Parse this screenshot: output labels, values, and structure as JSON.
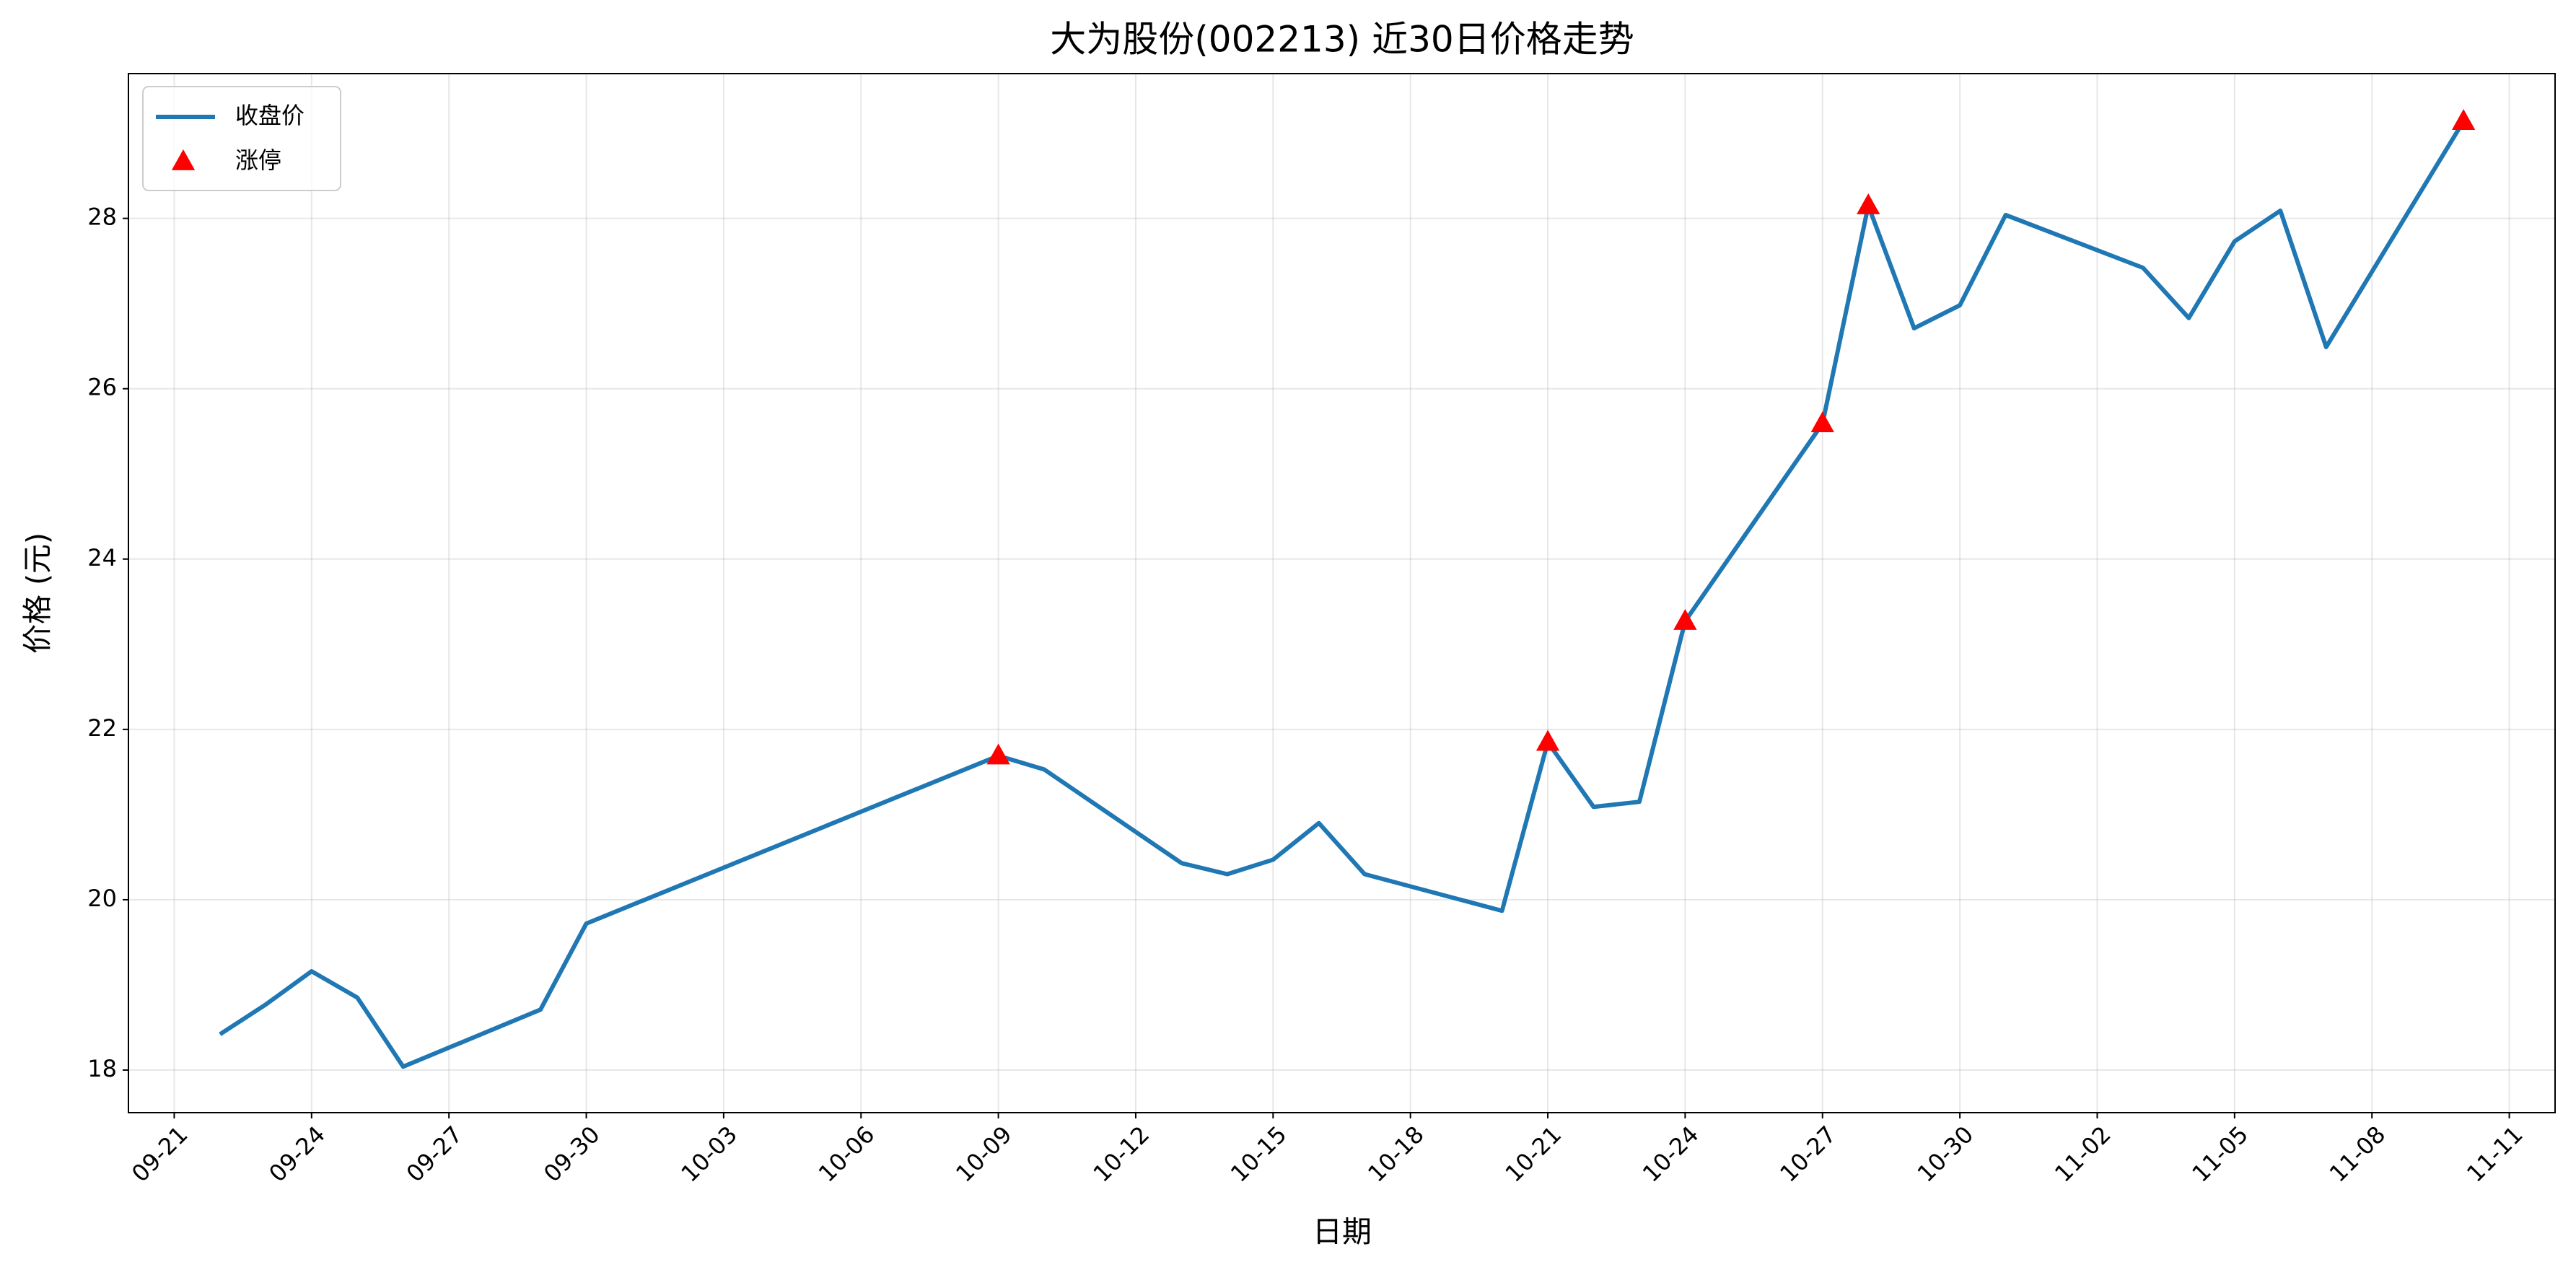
{
  "chart_data": {
    "type": "line",
    "title": "大为股份(002213) 近30日价格走势",
    "x_label": "日期",
    "y_label": "价格 (元)",
    "xlim": [
      "09-20",
      "11-12"
    ],
    "xticks": [
      "09-21",
      "09-24",
      "09-27",
      "09-30",
      "10-03",
      "10-06",
      "10-09",
      "10-12",
      "10-15",
      "10-18",
      "10-21",
      "10-24",
      "10-27",
      "10-30",
      "11-02",
      "11-05",
      "11-08",
      "11-11"
    ],
    "ylim": [
      17.5,
      29.7
    ],
    "yticks": [
      18,
      20,
      22,
      24,
      26,
      28
    ],
    "grid": true,
    "legend": "upper left",
    "series": [
      {
        "name": "收盘价",
        "color": "#1f77b4",
        "marker": "none",
        "x": [
          "09-22",
          "09-23",
          "09-24",
          "09-25",
          "09-26",
          "09-29",
          "09-30",
          "10-09",
          "10-10",
          "10-13",
          "10-14",
          "10-15",
          "10-16",
          "10-17",
          "10-20",
          "10-21",
          "10-22",
          "10-23",
          "10-24",
          "10-27",
          "10-28",
          "10-29",
          "10-30",
          "10-31",
          "11-03",
          "11-04",
          "11-05",
          "11-06",
          "11-07",
          "11-10"
        ],
        "values": [
          18.42,
          18.77,
          19.16,
          18.85,
          18.04,
          18.71,
          19.72,
          21.69,
          21.53,
          20.43,
          20.3,
          20.47,
          20.9,
          20.3,
          19.87,
          21.85,
          21.09,
          21.15,
          23.27,
          25.59,
          28.15,
          26.71,
          26.98,
          28.04,
          27.42,
          26.83,
          27.73,
          28.09,
          26.49,
          29.14
        ]
      },
      {
        "name": "涨停",
        "color": "#ff0000",
        "marker": "triangle",
        "x": [
          "10-09",
          "10-21",
          "10-24",
          "10-27",
          "10-28",
          "11-10"
        ],
        "values": [
          21.69,
          21.85,
          23.27,
          25.59,
          28.15,
          29.14
        ]
      }
    ]
  }
}
